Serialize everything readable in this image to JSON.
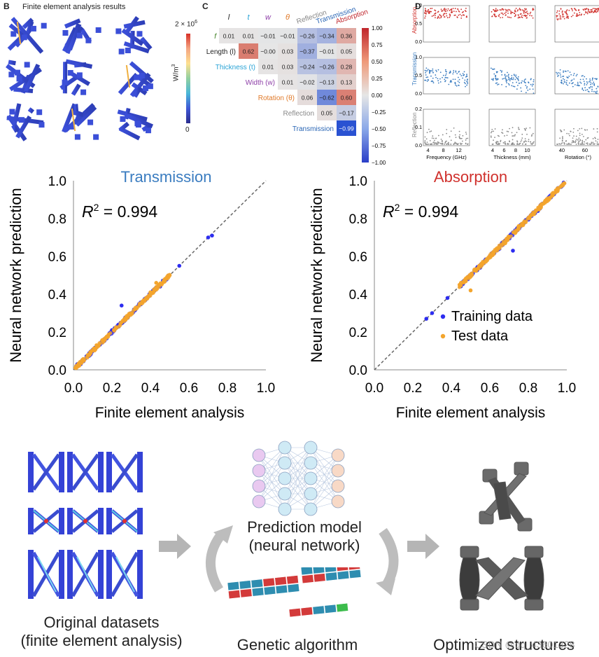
{
  "panel_b": {
    "label": "B",
    "title": "Finite element analysis results",
    "colorbar_max": "2 × 10",
    "colorbar_max_exp": "6",
    "colorbar_min": "0",
    "colorbar_unit": "W/m",
    "colorbar_unit_exp": "3"
  },
  "panel_c": {
    "label": "C",
    "col_headers": [
      "l",
      "t",
      "w",
      "θ",
      "Reflection",
      "Transmission",
      "Absorption"
    ],
    "col_header_colors": [
      "#222222",
      "#29a3d6",
      "#8e3fa8",
      "#e07a2a",
      "#888888",
      "#2a66b5",
      "#c0262c"
    ],
    "row_labels": [
      "f",
      "Length (l)",
      "Thickness (t)",
      "Width (w)",
      "Rotation (θ)",
      "Reflection",
      "Transmission"
    ],
    "row_label_colors": [
      "#3a7d1e",
      "#222222",
      "#29a3d6",
      "#8e3fa8",
      "#e07a2a",
      "#888888",
      "#2a66b5"
    ],
    "matrix": [
      [
        "0.01",
        "0.01",
        "−0.01",
        "−0.01",
        "−0.26",
        "−0.34",
        "0.36"
      ],
      [
        "0.62",
        "−0.00",
        "0.03",
        "−0.37",
        "−0.01",
        "0.05"
      ],
      [
        "0.01",
        "0.03",
        "−0.24",
        "−0.26",
        "0.28"
      ],
      [
        "0.01",
        "−0.02",
        "−0.13",
        "0.13"
      ],
      [
        "0.06",
        "−0.62",
        "0.60"
      ],
      [
        "0.05",
        "−0.17"
      ],
      [
        "−0.99"
      ]
    ],
    "colorbar_ticks": [
      "1.00",
      "0.75",
      "0.50",
      "0.25",
      "0.00",
      "−0.25",
      "−0.50",
      "−0.75",
      "−1.00"
    ]
  },
  "panel_d": {
    "label": "D",
    "row_labels": [
      "Absorption",
      "Transmission",
      "Reflection"
    ],
    "row_colors": [
      "#d0312d",
      "#3a7cc0",
      "#8a8a8a"
    ],
    "col_xlabels": [
      "Frequency (GHz)",
      "Thickness (mm)",
      "Rotation (°)"
    ],
    "col_xticks": [
      [
        "4",
        "8",
        "12"
      ],
      [
        "4",
        "6",
        "8",
        "10"
      ],
      [
        "40",
        "60"
      ]
    ],
    "row_yticks": [
      [
        "0.0",
        "0.5",
        "1.0"
      ],
      [
        "0.0",
        "0.5",
        "1.0"
      ],
      [
        "0.0",
        "0.1",
        "0.2"
      ]
    ]
  },
  "chart_data": [
    {
      "type": "scatter",
      "title": "Transmission",
      "xlabel": "Finite element analysis",
      "ylabel": "Neural network prediction",
      "annotation": "R",
      "annotation_sup": "2",
      "annotation_value": " = 0.994",
      "xlim": [
        0,
        1
      ],
      "ylim": [
        0,
        1
      ],
      "xticks": [
        "0.0",
        "0.2",
        "0.4",
        "0.6",
        "0.8",
        "1.0"
      ],
      "yticks": [
        "0.0",
        "0.2",
        "0.4",
        "0.6",
        "0.8",
        "1.0"
      ],
      "title_color": "#3a7cc0",
      "series": [
        {
          "color": "#2d2df0",
          "points": [
            [
              0.02,
              0.03
            ],
            [
              0.05,
              0.05
            ],
            [
              0.1,
              0.1
            ],
            [
              0.15,
              0.15
            ],
            [
              0.2,
              0.21
            ],
            [
              0.25,
              0.34
            ],
            [
              0.3,
              0.3
            ],
            [
              0.35,
              0.35
            ],
            [
              0.38,
              0.38
            ],
            [
              0.42,
              0.42
            ],
            [
              0.45,
              0.44
            ],
            [
              0.48,
              0.48
            ],
            [
              0.55,
              0.55
            ],
            [
              0.7,
              0.7
            ],
            [
              0.72,
              0.71
            ]
          ]
        },
        {
          "color": "#f3a52d",
          "points": [
            [
              0.01,
              0.01
            ],
            [
              0.08,
              0.08
            ],
            [
              0.12,
              0.13
            ],
            [
              0.18,
              0.18
            ],
            [
              0.22,
              0.22
            ],
            [
              0.28,
              0.28
            ],
            [
              0.33,
              0.33
            ],
            [
              0.4,
              0.41
            ],
            [
              0.43,
              0.46
            ],
            [
              0.47,
              0.47
            ],
            [
              0.5,
              0.5
            ]
          ]
        }
      ]
    },
    {
      "type": "scatter",
      "title": "Absorption",
      "xlabel": "Finite element analysis",
      "ylabel": "Neural network prediction",
      "annotation": "R",
      "annotation_sup": "2",
      "annotation_value": " = 0.994",
      "xlim": [
        0,
        1
      ],
      "ylim": [
        0,
        1
      ],
      "xticks": [
        "0.0",
        "0.2",
        "0.4",
        "0.6",
        "0.8",
        "1.0"
      ],
      "yticks": [
        "0.0",
        "0.2",
        "0.4",
        "0.6",
        "0.8",
        "1.0"
      ],
      "title_color": "#d0312d",
      "legend": [
        "Training data",
        "Test data"
      ],
      "series": [
        {
          "name": "Training data",
          "color": "#2d2df0",
          "points": [
            [
              0.27,
              0.27
            ],
            [
              0.3,
              0.3
            ],
            [
              0.38,
              0.38
            ],
            [
              0.45,
              0.45
            ],
            [
              0.5,
              0.5
            ],
            [
              0.55,
              0.54
            ],
            [
              0.6,
              0.6
            ],
            [
              0.65,
              0.64
            ],
            [
              0.7,
              0.7
            ],
            [
              0.75,
              0.75
            ],
            [
              0.8,
              0.8
            ],
            [
              0.85,
              0.84
            ],
            [
              0.9,
              0.9
            ],
            [
              0.95,
              0.95
            ],
            [
              0.98,
              0.98
            ],
            [
              0.72,
              0.63
            ]
          ]
        },
        {
          "name": "Test data",
          "color": "#f3a52d",
          "points": [
            [
              0.45,
              0.46
            ],
            [
              0.5,
              0.42
            ],
            [
              0.52,
              0.53
            ],
            [
              0.58,
              0.58
            ],
            [
              0.62,
              0.62
            ],
            [
              0.68,
              0.67
            ],
            [
              0.75,
              0.76
            ],
            [
              0.82,
              0.82
            ],
            [
              0.88,
              0.88
            ],
            [
              0.93,
              0.93
            ],
            [
              0.97,
              0.97
            ]
          ]
        }
      ]
    }
  ],
  "workflow": {
    "datasets_caption_1": "Original datasets",
    "datasets_caption_2": "(finite element analysis)",
    "model_caption_1": "Prediction model",
    "model_caption_2": "(neural network)",
    "ga_caption": "Genetic algorithm",
    "optimized_caption": "Optimized structures",
    "watermark": "CSDN @qq_43601328"
  }
}
